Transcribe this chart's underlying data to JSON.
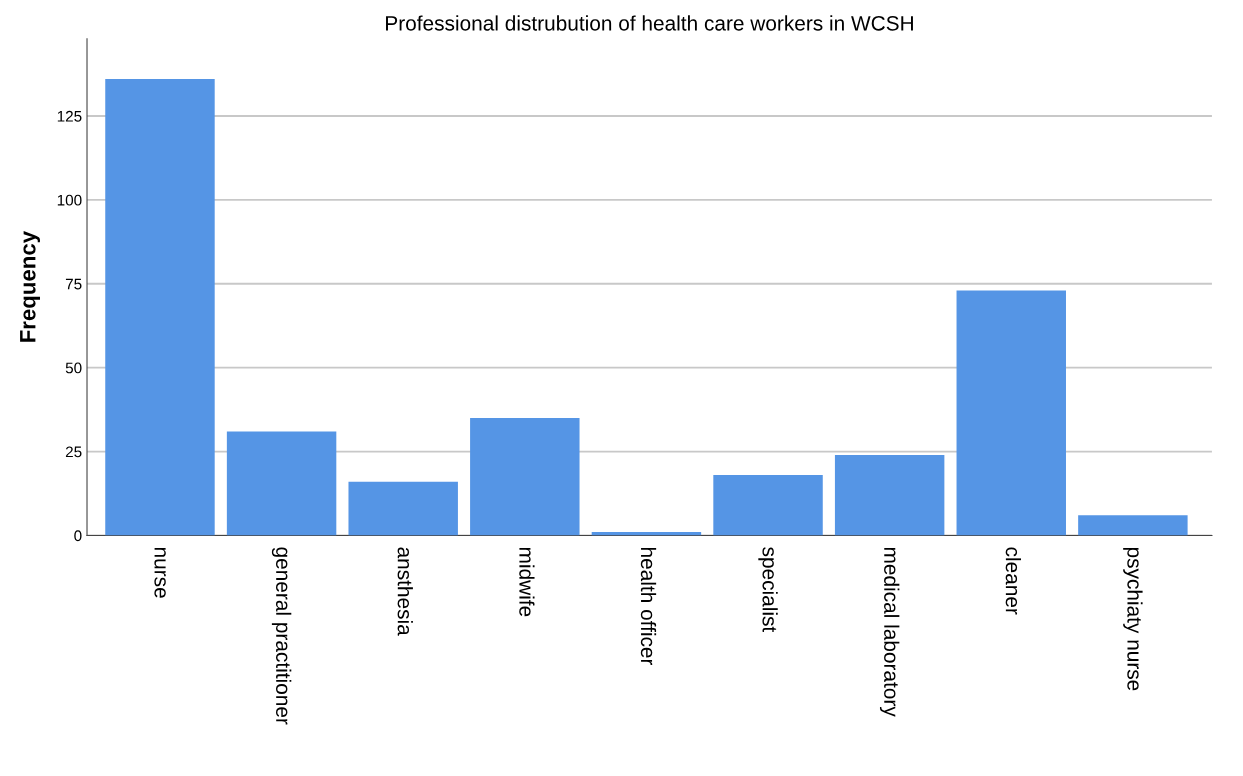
{
  "chart_data": {
    "type": "bar",
    "title": "Professional distrubution of health care workers in WCSH",
    "ylabel": "Frequency",
    "categories": [
      "nurse",
      "general practitioner",
      "ansthesia",
      "midwife",
      "health officer",
      "specialist",
      "medical laboratory",
      "cleaner",
      "psychiaty nurse"
    ],
    "values": [
      136,
      31,
      16,
      35,
      1,
      18,
      24,
      73,
      6
    ],
    "color": "#5595e5",
    "ylim": [
      0,
      148
    ],
    "yticks": [
      0,
      25,
      50,
      75,
      100,
      125
    ],
    "grid": "y"
  }
}
